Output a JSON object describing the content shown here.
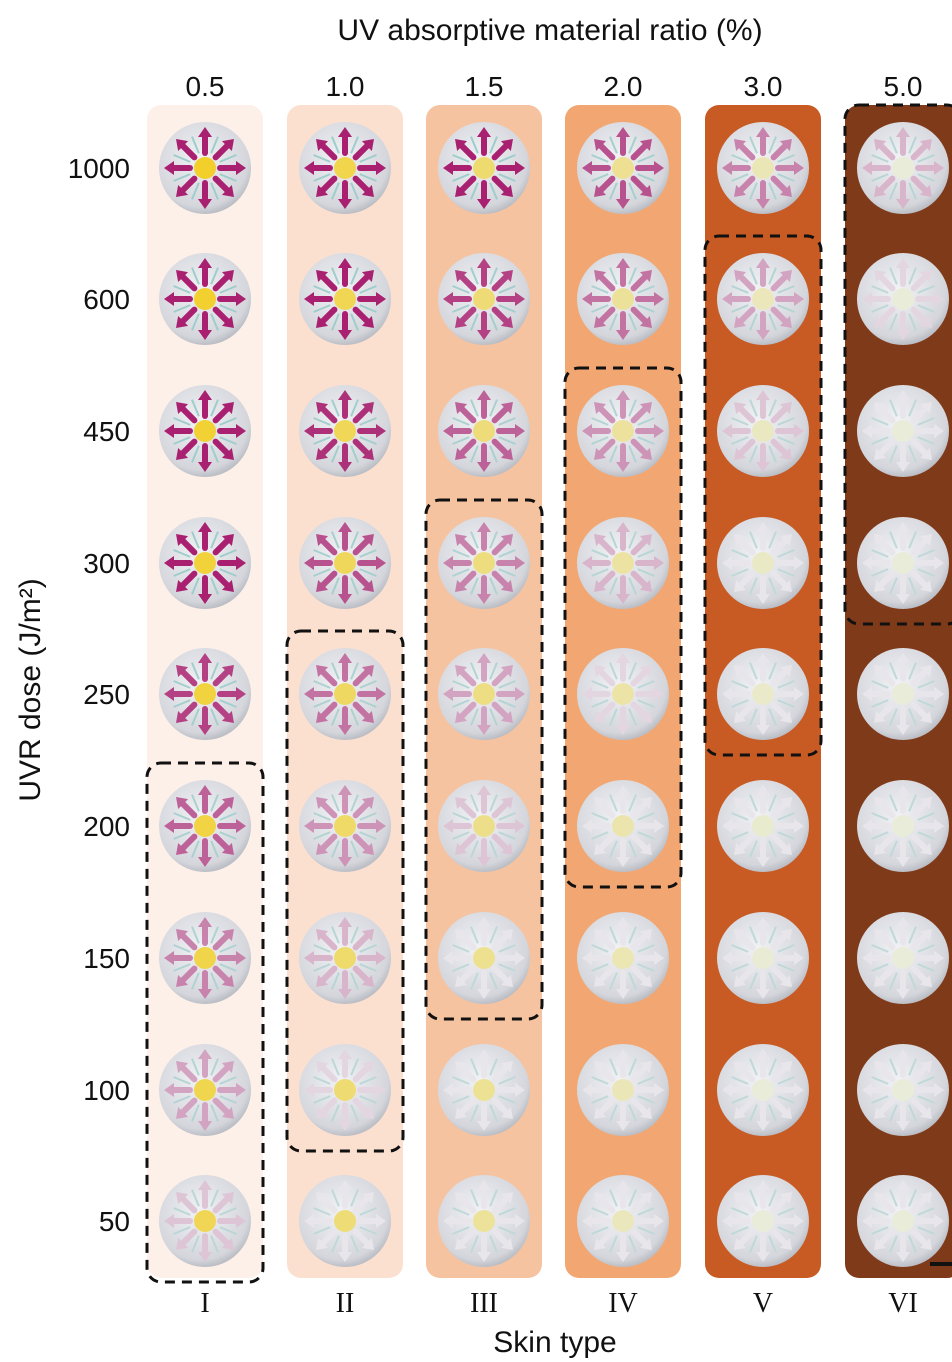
{
  "title": "UV absorptive material ratio (%)",
  "ratios": [
    "0.5",
    "1.0",
    "1.5",
    "2.0",
    "3.0",
    "5.0"
  ],
  "doses": [
    "1000",
    "600",
    "450",
    "300",
    "250",
    "200",
    "150",
    "100",
    "50"
  ],
  "y_axis_label": "UVR dose (J/m²)",
  "skin_types": [
    "I",
    "II",
    "III",
    "IV",
    "V",
    "VI"
  ],
  "x_axis_label": "Skin type"
}
